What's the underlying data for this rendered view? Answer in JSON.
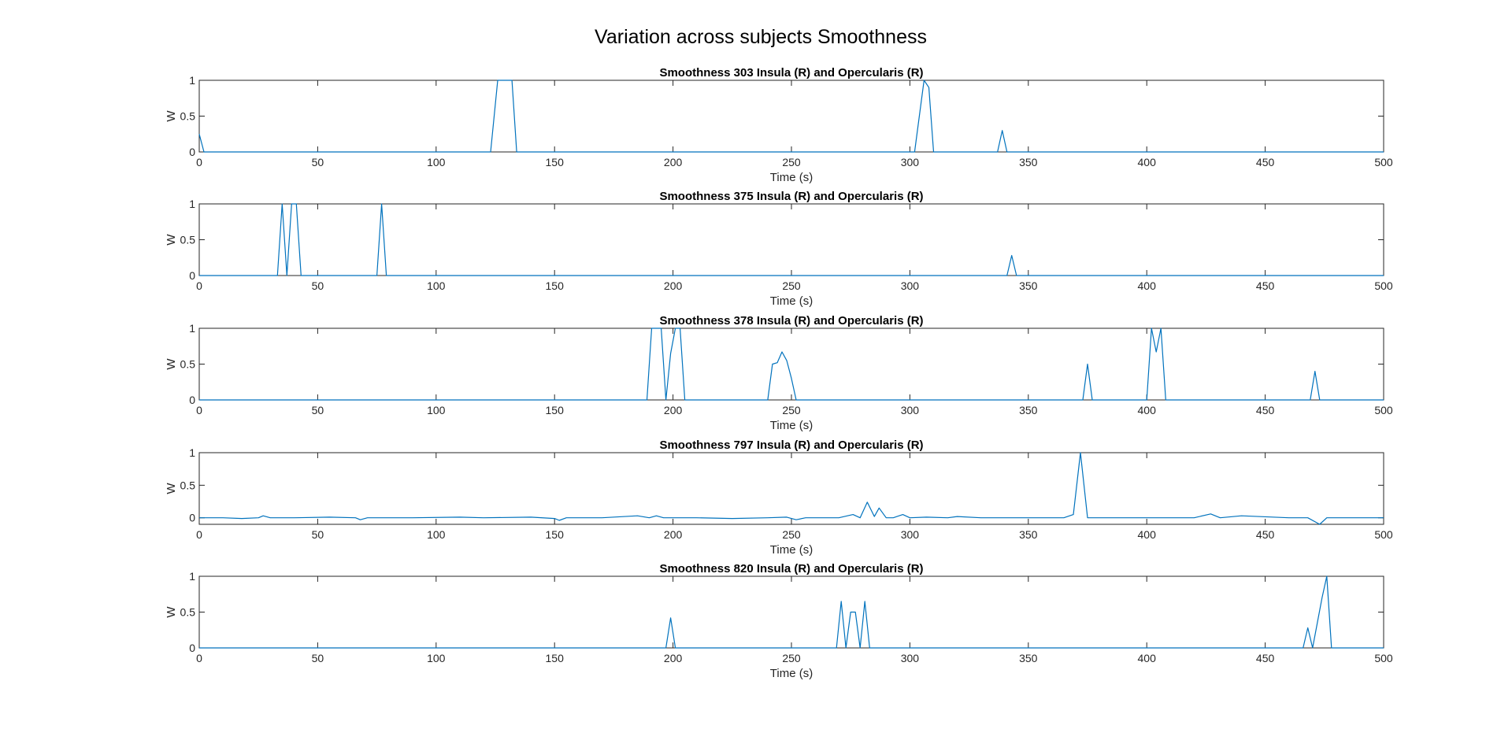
{
  "figure": {
    "suptitle": "Variation across subjects Smoothness"
  },
  "chart_data": [
    {
      "type": "line",
      "title": "Smoothness 303 Insula (R) and Opercularis (R)",
      "xlabel": "Time (s)",
      "ylabel": "W",
      "xlim": [
        0,
        500
      ],
      "ylim": [
        0,
        1
      ],
      "xticks": [
        "0",
        "50",
        "100",
        "150",
        "200",
        "250",
        "300",
        "350",
        "400",
        "450",
        "500"
      ],
      "yticks": [
        "0",
        "0.5",
        "1"
      ],
      "grid": false,
      "color": "#0072BD",
      "x": [
        0,
        2,
        4,
        123,
        126,
        128,
        130,
        132,
        134,
        302,
        304,
        306,
        308,
        310,
        337,
        339,
        341,
        500
      ],
      "y": [
        0.25,
        0,
        0,
        0,
        1,
        1,
        1,
        1,
        0,
        0,
        0.5,
        1,
        0.9,
        0,
        0,
        0.3,
        0,
        0
      ]
    },
    {
      "type": "line",
      "title": "Smoothness 375 Insula (R) and Opercularis (R)",
      "xlabel": "Time (s)",
      "ylabel": "W",
      "xlim": [
        0,
        500
      ],
      "ylim": [
        0,
        1
      ],
      "xticks": [
        "0",
        "50",
        "100",
        "150",
        "200",
        "250",
        "300",
        "350",
        "400",
        "450",
        "500"
      ],
      "yticks": [
        "0",
        "0.5",
        "1"
      ],
      "grid": false,
      "color": "#0072BD",
      "x": [
        0,
        33,
        35,
        37,
        39,
        41,
        43,
        75,
        77,
        79,
        341,
        343,
        345,
        500
      ],
      "y": [
        0,
        0,
        1,
        0,
        1,
        1,
        0,
        0,
        1,
        0,
        0,
        0.28,
        0,
        0
      ]
    },
    {
      "type": "line",
      "title": "Smoothness 378 Insula (R) and Opercularis (R)",
      "xlabel": "Time (s)",
      "ylabel": "W",
      "xlim": [
        0,
        500
      ],
      "ylim": [
        0,
        1
      ],
      "xticks": [
        "0",
        "50",
        "100",
        "150",
        "200",
        "250",
        "300",
        "350",
        "400",
        "450",
        "500"
      ],
      "yticks": [
        "0",
        "0.5",
        "1"
      ],
      "grid": false,
      "color": "#0072BD",
      "x": [
        0,
        189,
        191,
        193,
        195,
        197,
        199,
        201,
        203,
        205,
        240,
        242,
        244,
        246,
        248,
        250,
        252,
        373,
        375,
        377,
        400,
        402,
        404,
        406,
        408,
        469,
        471,
        473,
        500
      ],
      "y": [
        0,
        0,
        1,
        1,
        1,
        0,
        0.65,
        1,
        1,
        0,
        0,
        0.5,
        0.52,
        0.67,
        0.55,
        0.3,
        0,
        0,
        0.5,
        0,
        0,
        1,
        0.67,
        1,
        0,
        0,
        0.4,
        0,
        0
      ]
    },
    {
      "type": "line",
      "title": "Smoothness 797 Insula (R) and Opercularis (R)",
      "xlabel": "Time (s)",
      "ylabel": "W",
      "xlim": [
        0,
        500
      ],
      "ylim": [
        -0.1,
        1
      ],
      "xticks": [
        "0",
        "50",
        "100",
        "150",
        "200",
        "250",
        "300",
        "350",
        "400",
        "450",
        "500"
      ],
      "yticks": [
        "0",
        "0.5",
        "1"
      ],
      "grid": false,
      "color": "#0072BD",
      "x": [
        0,
        10,
        18,
        25,
        27,
        30,
        40,
        55,
        66,
        68,
        71,
        90,
        110,
        120,
        140,
        150,
        152,
        155,
        170,
        185,
        190,
        193,
        196,
        210,
        225,
        240,
        248,
        252,
        256,
        270,
        276,
        279,
        282,
        285,
        287,
        290,
        293,
        297,
        300,
        307,
        316,
        320,
        330,
        345,
        365,
        369,
        372,
        375,
        380,
        400,
        420,
        427,
        431,
        440,
        460,
        468,
        473,
        476,
        480,
        500
      ],
      "y": [
        0,
        0,
        -0.01,
        0,
        0.03,
        0,
        0,
        0.01,
        0,
        -0.03,
        0,
        0,
        0.01,
        0,
        0.01,
        -0.01,
        -0.04,
        0,
        0,
        0.03,
        0,
        0.03,
        0,
        0,
        -0.01,
        0,
        0.01,
        -0.03,
        0,
        0,
        0.05,
        0,
        0.24,
        0.02,
        0.15,
        0,
        0,
        0.05,
        0,
        0.01,
        0,
        0.02,
        0,
        0,
        0,
        0.05,
        1,
        0,
        0,
        0,
        0,
        0.06,
        0,
        0.03,
        0,
        0,
        -0.1,
        0,
        0,
        0
      ]
    },
    {
      "type": "line",
      "title": "Smoothness 820 Insula (R) and Opercularis (R)",
      "xlabel": "Time (s)",
      "ylabel": "W",
      "xlim": [
        0,
        500
      ],
      "ylim": [
        0,
        1
      ],
      "xticks": [
        "0",
        "50",
        "100",
        "150",
        "200",
        "250",
        "300",
        "350",
        "400",
        "450",
        "500"
      ],
      "yticks": [
        "0",
        "0.5",
        "1"
      ],
      "grid": false,
      "color": "#0072BD",
      "x": [
        0,
        197,
        199,
        201,
        269,
        271,
        273,
        275,
        277,
        279,
        281,
        283,
        466,
        468,
        470,
        472,
        474,
        476,
        478,
        500
      ],
      "y": [
        0,
        0,
        0.42,
        0,
        0,
        0.65,
        0,
        0.5,
        0.5,
        0,
        0.65,
        0,
        0,
        0.28,
        0,
        0.35,
        0.7,
        1,
        0,
        0
      ]
    }
  ]
}
